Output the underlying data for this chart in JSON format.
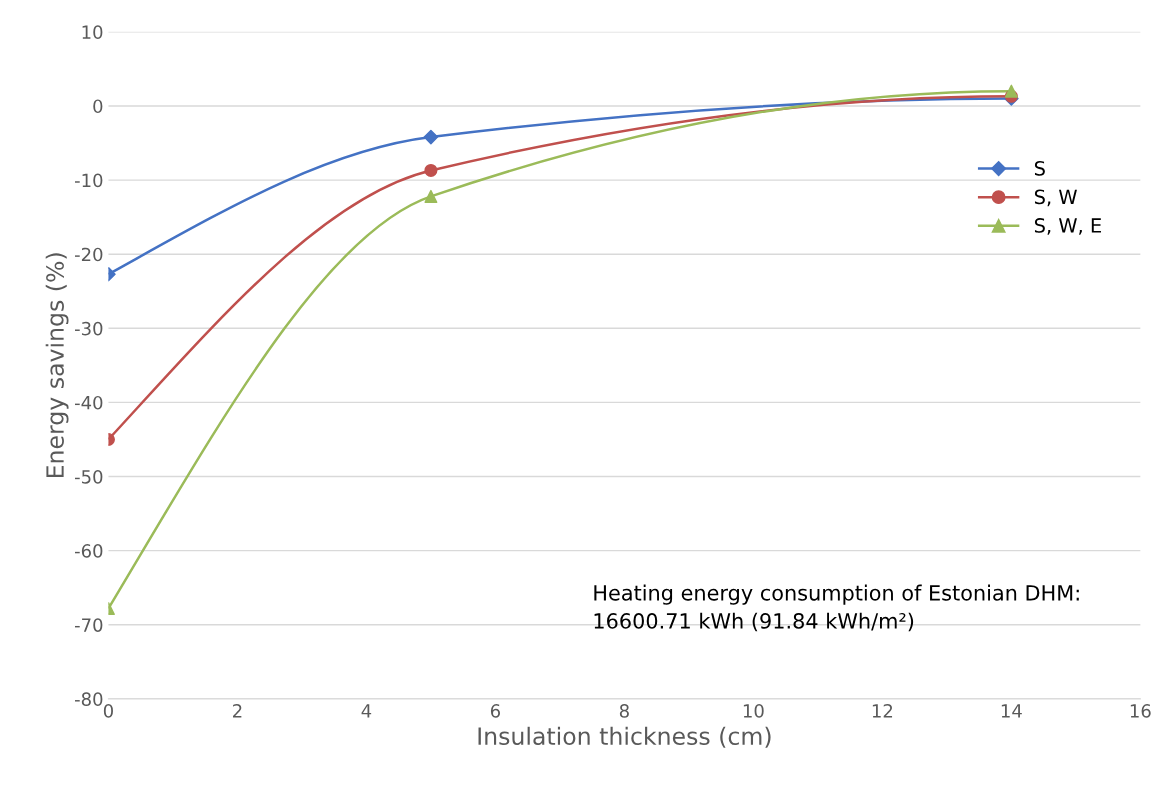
{
  "chart_data": {
    "type": "line",
    "xlabel": "Insulation thickness (cm)",
    "ylabel": "Energy savings (%)",
    "x": [
      0,
      5,
      14
    ],
    "series": [
      {
        "name": "S",
        "color": "#4472c4",
        "marker": "diamond",
        "values": [
          -22.7,
          -4.2,
          1.0
        ]
      },
      {
        "name": "S, W",
        "color": "#c0504d",
        "marker": "circle",
        "values": [
          -45.0,
          -8.7,
          1.3
        ]
      },
      {
        "name": "S, W, E",
        "color": "#9bbb59",
        "marker": "triangle",
        "values": [
          -67.8,
          -12.2,
          2.0
        ]
      }
    ],
    "xlim": [
      0,
      16
    ],
    "xticks": [
      0,
      2,
      4,
      6,
      8,
      10,
      12,
      14,
      16
    ],
    "ylim": [
      -80,
      10
    ],
    "yticks": [
      -80,
      -70,
      -60,
      -50,
      -40,
      -30,
      -20,
      -10,
      0,
      10
    ],
    "grid": "y",
    "legend": "center right",
    "line_style": "solid",
    "annotations": [
      "Heating energy consumption of Estonian DHM: 16600.71 kWh (91.84 kWh/m²)"
    ]
  }
}
